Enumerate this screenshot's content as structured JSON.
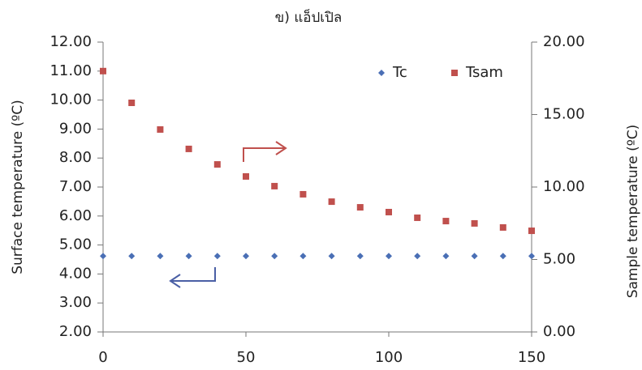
{
  "chart_data": {
    "type": "scatter",
    "title": "ข) แอ็ปเปิล",
    "x_label": null,
    "y_label": "Surface temperature (ºC)",
    "y2_label": "Sample temperature (ºC)",
    "x": [
      0,
      10,
      20,
      30,
      40,
      50,
      60,
      70,
      80,
      90,
      100,
      110,
      120,
      130,
      140,
      150
    ],
    "series": [
      {
        "name": "Tc",
        "color": "#4a6fb5",
        "marker": "diamond",
        "axis": "y",
        "values": [
          4.62,
          4.62,
          4.62,
          4.62,
          4.62,
          4.62,
          4.62,
          4.62,
          4.62,
          4.62,
          4.62,
          4.62,
          4.62,
          4.62,
          4.62,
          4.62
        ]
      },
      {
        "name": "Tsam",
        "color": "#c0504d",
        "marker": "square",
        "axis": "y2",
        "values": [
          18.0,
          15.81,
          13.97,
          12.63,
          11.56,
          10.73,
          10.06,
          9.5,
          8.99,
          8.6,
          8.27,
          7.88,
          7.65,
          7.49,
          7.21,
          6.98
        ]
      }
    ],
    "xlim": [
      0,
      150
    ],
    "xticks": [
      0,
      50,
      100,
      150
    ],
    "ylim": [
      2,
      12
    ],
    "yticks": [
      {
        "value": 2,
        "label": "2.00"
      },
      {
        "value": 3,
        "label": "3.00"
      },
      {
        "value": 4,
        "label": "4.00"
      },
      {
        "value": 5,
        "label": "5.00"
      },
      {
        "value": 6,
        "label": "6.00"
      },
      {
        "value": 7,
        "label": "7.00"
      },
      {
        "value": 8,
        "label": "8.00"
      },
      {
        "value": 9,
        "label": "9.00"
      },
      {
        "value": 10,
        "label": "10.00"
      },
      {
        "value": 11,
        "label": "11.00"
      },
      {
        "value": 12,
        "label": "12.00"
      }
    ],
    "y2lim": [
      0,
      20
    ],
    "y2ticks": [
      {
        "value": 0,
        "label": "0.00"
      },
      {
        "value": 5,
        "label": "5.00"
      },
      {
        "value": 10,
        "label": "10.00"
      },
      {
        "value": 15,
        "label": "15.00"
      },
      {
        "value": 20,
        "label": "20.00"
      }
    ],
    "grid": false,
    "legend": "top-right"
  }
}
